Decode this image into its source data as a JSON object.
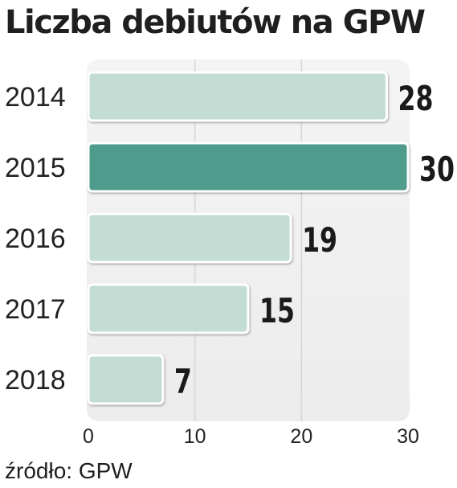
{
  "chart_data": {
    "type": "bar",
    "orientation": "horizontal",
    "title": "Liczba debiutów na GPW",
    "categories": [
      "2014",
      "2015",
      "2016",
      "2017",
      "2018"
    ],
    "values": [
      28,
      30,
      19,
      15,
      7
    ],
    "highlighted_category": "2015",
    "xlim": [
      0,
      30
    ],
    "xticks": [
      "0",
      "10",
      "20",
      "30"
    ],
    "grid": true,
    "xlabel": "",
    "ylabel": "",
    "colors": {
      "bar": "#c4ddd4",
      "bar_highlight": "#4f9b8c",
      "bar_outline": "#ffffff",
      "plot_background": "#f1f1f1",
      "gridline": "#d6d6d6"
    }
  },
  "source": "źródło: GPW"
}
